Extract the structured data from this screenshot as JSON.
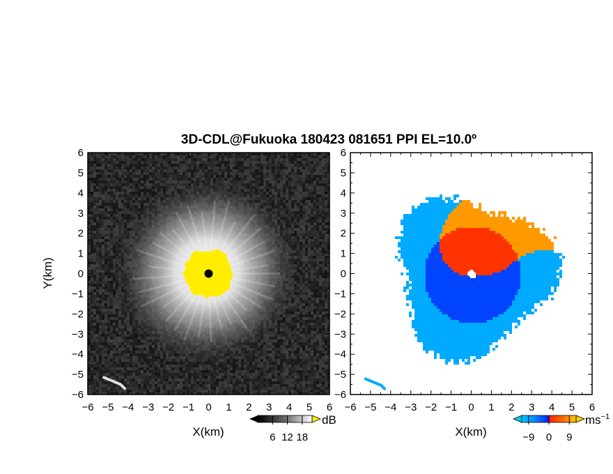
{
  "chart_data": [
    {
      "type": "heatmap",
      "title": "3D-CDL@Fukuoka 180423 081651 PPI EL=10.0º",
      "xlabel": "X(km)",
      "ylabel": "Y(km)",
      "xlim": [
        -6,
        6
      ],
      "ylim": [
        -6,
        6
      ],
      "xticks": [
        "-6",
        "-5",
        "-4",
        "-3",
        "-2",
        "-1",
        "0",
        "1",
        "2",
        "3",
        "4",
        "5",
        "6"
      ],
      "yticks": [
        "6",
        "5",
        "4",
        "3",
        "2",
        "1",
        "0",
        "-1",
        "-2",
        "-3",
        "-4",
        "-5",
        "-6"
      ],
      "field": "signal intensity (grayscale)",
      "colorbar": {
        "unit": "dB",
        "ticks": [
          "6",
          "12",
          "18"
        ],
        "range": [
          0,
          22
        ]
      },
      "colors": {
        "background": "#222222",
        "saturated": "#ffee00",
        "center": "#000000"
      }
    },
    {
      "type": "heatmap",
      "xlabel": "X(km)",
      "xlim": [
        -6,
        6
      ],
      "ylim": [
        -6,
        6
      ],
      "xticks": [
        "-6",
        "-5",
        "-4",
        "-3",
        "-2",
        "-1",
        "0",
        "1",
        "2",
        "3",
        "4",
        "5",
        "6"
      ],
      "yticks": [
        "6",
        "5",
        "4",
        "3",
        "2",
        "1",
        "0",
        "-1",
        "-2",
        "-3",
        "-4",
        "-5",
        "-6"
      ],
      "field": "Doppler velocity",
      "colorbar": {
        "unit": "ms",
        "unit_exponent": "−1",
        "ticks": [
          "−9",
          "0",
          "9"
        ],
        "range": [
          -12,
          12
        ]
      },
      "colors": {
        "positive": "#ff3300",
        "positive_far": "#ff9900",
        "negative": "#0044ff",
        "negative_far": "#00aaff",
        "center": "#ffffff"
      }
    }
  ]
}
